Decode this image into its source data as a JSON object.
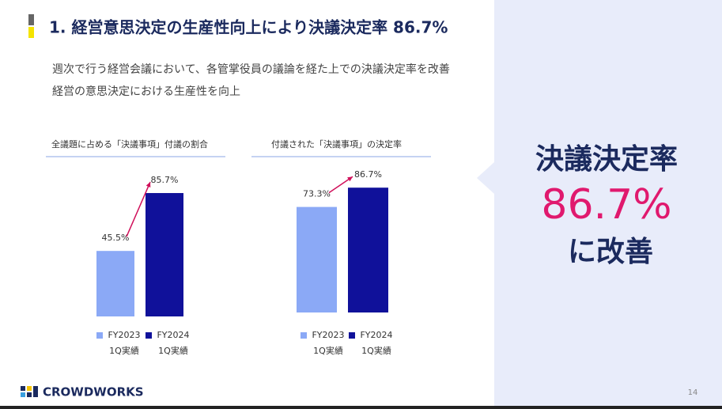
{
  "slide": {
    "title": "1. 経営意思決定の生産性向上により決議決定率 86.7%",
    "body": [
      "週次で行う経営会議において、各管掌役員の議論を経た上での決議決定率を改善",
      "経営の意思決定における生産性を向上"
    ],
    "callout": [
      "決議決定率",
      "86.7%",
      "に改善"
    ],
    "logo": "CROWDWORKS",
    "page_number": "14"
  },
  "chart_data": [
    {
      "type": "bar",
      "title": "全議題に占める「決議事項」付議の割合",
      "ylim": [
        0,
        100
      ],
      "series": [
        {
          "name": "FY2023 1Q実績",
          "color": "#8ba9f6",
          "values": [
            45.5
          ],
          "value_labels": [
            "45.5%"
          ]
        },
        {
          "name": "FY2024 1Q実績",
          "color": "#10119a",
          "values": [
            85.7
          ],
          "value_labels": [
            "85.7%"
          ]
        }
      ]
    },
    {
      "type": "bar",
      "title": "付議された「決議事項」の決定率",
      "ylim": [
        0,
        100
      ],
      "series": [
        {
          "name": "FY2023 1Q実績",
          "color": "#8ba9f6",
          "values": [
            73.3
          ],
          "value_labels": [
            "73.3%"
          ]
        },
        {
          "name": "FY2024 1Q実績",
          "color": "#10119a",
          "values": [
            86.7
          ],
          "value_labels": [
            "86.7%"
          ]
        }
      ]
    }
  ]
}
